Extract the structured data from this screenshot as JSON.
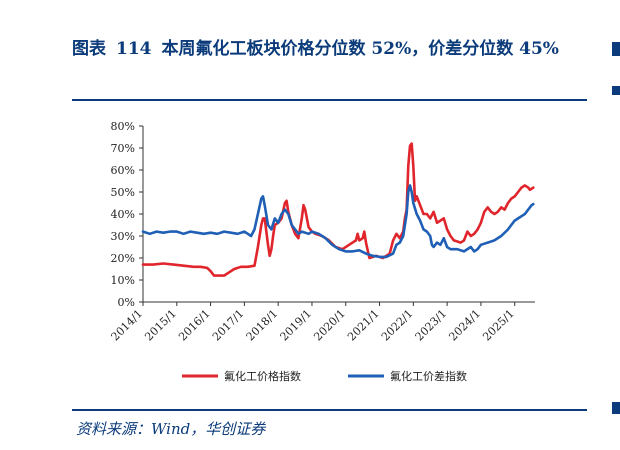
{
  "header": {
    "label": "图表",
    "number": "114",
    "title": "本周氟化工板块价格分位数 52%，价差分位数 45%"
  },
  "source": "资料来源：Wind，华创证券",
  "colors": {
    "accent": "#0b3b7a",
    "price": "#e0262c",
    "spread": "#1f5fb5"
  },
  "chart_data": {
    "type": "line",
    "x_labels": [
      "2014/1",
      "2015/1",
      "2016/1",
      "2017/1",
      "2018/1",
      "2019/1",
      "2020/1",
      "2021/1",
      "2022/1",
      "2023/1",
      "2024/1",
      "2025/1"
    ],
    "y_ticks": [
      "0%",
      "10%",
      "20%",
      "30%",
      "40%",
      "50%",
      "60%",
      "70%",
      "80%"
    ],
    "ylim": [
      0,
      80
    ],
    "xlim": [
      2014.0,
      2025.6
    ],
    "grid": false,
    "legend_position": "bottom",
    "series": [
      {
        "name": "氟化工价格指数",
        "color": "#e0262c",
        "points": [
          [
            2014.0,
            17
          ],
          [
            2014.3,
            17
          ],
          [
            2014.6,
            17.5
          ],
          [
            2014.9,
            17
          ],
          [
            2015.2,
            16.5
          ],
          [
            2015.5,
            16
          ],
          [
            2015.7,
            16
          ],
          [
            2015.9,
            15.5
          ],
          [
            2016.0,
            14
          ],
          [
            2016.1,
            12
          ],
          [
            2016.4,
            12
          ],
          [
            2016.6,
            14
          ],
          [
            2016.7,
            15
          ],
          [
            2016.9,
            16
          ],
          [
            2017.1,
            16
          ],
          [
            2017.3,
            16.5
          ],
          [
            2017.4,
            25
          ],
          [
            2017.5,
            35
          ],
          [
            2017.55,
            38
          ],
          [
            2017.6,
            38
          ],
          [
            2017.7,
            26
          ],
          [
            2017.75,
            21
          ],
          [
            2017.8,
            24
          ],
          [
            2017.85,
            30
          ],
          [
            2017.9,
            35
          ],
          [
            2018.0,
            36
          ],
          [
            2018.1,
            38
          ],
          [
            2018.2,
            45
          ],
          [
            2018.25,
            46
          ],
          [
            2018.3,
            41
          ],
          [
            2018.4,
            35
          ],
          [
            2018.5,
            31
          ],
          [
            2018.6,
            29
          ],
          [
            2018.7,
            38
          ],
          [
            2018.75,
            44
          ],
          [
            2018.8,
            42
          ],
          [
            2018.9,
            34
          ],
          [
            2019.0,
            32
          ],
          [
            2019.1,
            31
          ],
          [
            2019.3,
            30
          ],
          [
            2019.5,
            28
          ],
          [
            2019.7,
            25
          ],
          [
            2019.9,
            24
          ],
          [
            2020.1,
            26
          ],
          [
            2020.3,
            28
          ],
          [
            2020.35,
            31
          ],
          [
            2020.4,
            28
          ],
          [
            2020.5,
            29
          ],
          [
            2020.55,
            32
          ],
          [
            2020.6,
            27
          ],
          [
            2020.7,
            20
          ],
          [
            2020.9,
            21
          ],
          [
            2021.1,
            20
          ],
          [
            2021.3,
            22
          ],
          [
            2021.4,
            28
          ],
          [
            2021.5,
            31
          ],
          [
            2021.6,
            29
          ],
          [
            2021.7,
            32
          ],
          [
            2021.75,
            38
          ],
          [
            2021.8,
            42
          ],
          [
            2021.85,
            62
          ],
          [
            2021.9,
            71
          ],
          [
            2021.95,
            72
          ],
          [
            2022.0,
            62
          ],
          [
            2022.05,
            46
          ],
          [
            2022.1,
            48
          ],
          [
            2022.2,
            44
          ],
          [
            2022.3,
            40
          ],
          [
            2022.4,
            40
          ],
          [
            2022.5,
            38
          ],
          [
            2022.6,
            41
          ],
          [
            2022.7,
            36
          ],
          [
            2022.8,
            37
          ],
          [
            2022.9,
            38
          ],
          [
            2023.0,
            33
          ],
          [
            2023.1,
            30
          ],
          [
            2023.2,
            28
          ],
          [
            2023.4,
            27
          ],
          [
            2023.5,
            28
          ],
          [
            2023.6,
            32
          ],
          [
            2023.7,
            30
          ],
          [
            2023.8,
            31
          ],
          [
            2023.9,
            33
          ],
          [
            2024.0,
            36
          ],
          [
            2024.1,
            41
          ],
          [
            2024.2,
            43
          ],
          [
            2024.3,
            41
          ],
          [
            2024.4,
            40
          ],
          [
            2024.5,
            41
          ],
          [
            2024.6,
            43
          ],
          [
            2024.7,
            42
          ],
          [
            2024.8,
            45
          ],
          [
            2024.9,
            47
          ],
          [
            2025.0,
            48
          ],
          [
            2025.1,
            50
          ],
          [
            2025.2,
            52
          ],
          [
            2025.3,
            53
          ],
          [
            2025.4,
            52
          ],
          [
            2025.45,
            51
          ],
          [
            2025.5,
            51.5
          ],
          [
            2025.55,
            52
          ]
        ]
      },
      {
        "name": "氟化工价差指数",
        "color": "#1f5fb5",
        "points": [
          [
            2014.0,
            32
          ],
          [
            2014.2,
            31
          ],
          [
            2014.4,
            32
          ],
          [
            2014.6,
            31.5
          ],
          [
            2014.8,
            32
          ],
          [
            2015.0,
            32
          ],
          [
            2015.2,
            31
          ],
          [
            2015.4,
            32
          ],
          [
            2015.6,
            31.5
          ],
          [
            2015.8,
            31
          ],
          [
            2016.0,
            31.5
          ],
          [
            2016.2,
            31
          ],
          [
            2016.4,
            32
          ],
          [
            2016.6,
            31.5
          ],
          [
            2016.8,
            31
          ],
          [
            2017.0,
            32
          ],
          [
            2017.1,
            31
          ],
          [
            2017.2,
            30
          ],
          [
            2017.3,
            33
          ],
          [
            2017.4,
            40
          ],
          [
            2017.5,
            47
          ],
          [
            2017.55,
            48
          ],
          [
            2017.6,
            44
          ],
          [
            2017.7,
            35
          ],
          [
            2017.8,
            33
          ],
          [
            2017.9,
            38
          ],
          [
            2018.0,
            36
          ],
          [
            2018.1,
            40
          ],
          [
            2018.2,
            42
          ],
          [
            2018.3,
            40
          ],
          [
            2018.4,
            35
          ],
          [
            2018.5,
            33
          ],
          [
            2018.6,
            31
          ],
          [
            2018.7,
            32
          ],
          [
            2018.9,
            31
          ],
          [
            2019.0,
            32
          ],
          [
            2019.2,
            31
          ],
          [
            2019.4,
            29
          ],
          [
            2019.6,
            26
          ],
          [
            2019.8,
            24
          ],
          [
            2020.0,
            23
          ],
          [
            2020.2,
            23
          ],
          [
            2020.4,
            23.5
          ],
          [
            2020.6,
            22
          ],
          [
            2020.8,
            21
          ],
          [
            2021.0,
            20.5
          ],
          [
            2021.2,
            20.5
          ],
          [
            2021.4,
            22
          ],
          [
            2021.5,
            26
          ],
          [
            2021.6,
            27
          ],
          [
            2021.7,
            30
          ],
          [
            2021.8,
            40
          ],
          [
            2021.85,
            50
          ],
          [
            2021.9,
            53
          ],
          [
            2021.95,
            50
          ],
          [
            2022.0,
            45
          ],
          [
            2022.1,
            40
          ],
          [
            2022.2,
            37
          ],
          [
            2022.3,
            33
          ],
          [
            2022.4,
            32
          ],
          [
            2022.5,
            30
          ],
          [
            2022.55,
            26
          ],
          [
            2022.6,
            25
          ],
          [
            2022.7,
            27
          ],
          [
            2022.8,
            26
          ],
          [
            2022.9,
            29
          ],
          [
            2023.0,
            25
          ],
          [
            2023.1,
            24
          ],
          [
            2023.3,
            24
          ],
          [
            2023.5,
            23
          ],
          [
            2023.7,
            25
          ],
          [
            2023.8,
            23
          ],
          [
            2023.9,
            24
          ],
          [
            2024.0,
            26
          ],
          [
            2024.2,
            27
          ],
          [
            2024.4,
            28
          ],
          [
            2024.6,
            30
          ],
          [
            2024.8,
            33
          ],
          [
            2024.9,
            35
          ],
          [
            2025.0,
            37
          ],
          [
            2025.1,
            38
          ],
          [
            2025.2,
            39
          ],
          [
            2025.3,
            40
          ],
          [
            2025.4,
            42
          ],
          [
            2025.5,
            44
          ],
          [
            2025.55,
            44.5
          ]
        ]
      }
    ]
  }
}
